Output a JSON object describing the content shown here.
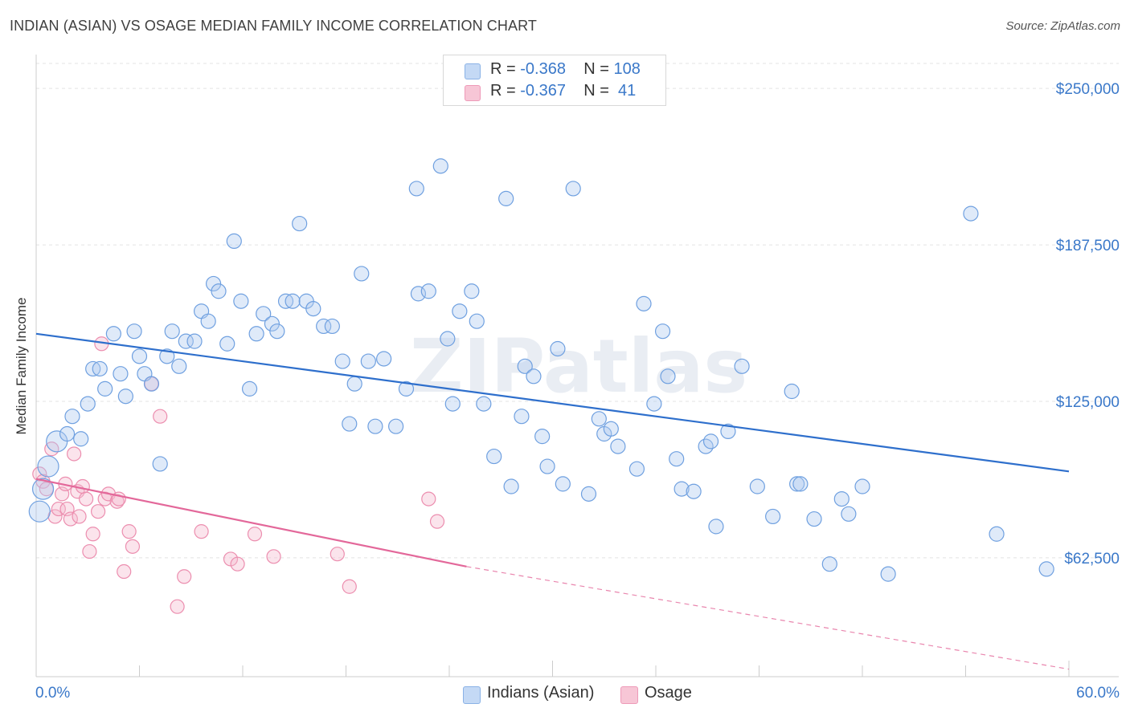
{
  "title": "INDIAN (ASIAN) VS OSAGE MEDIAN FAMILY INCOME CORRELATION CHART",
  "source": "Source: ZipAtlas.com",
  "watermark": "ZIPatlas",
  "legend": {
    "rows": [
      {
        "r_label": "R = ",
        "r_value": "-0.368",
        "n_label": "N = ",
        "n_value": "108"
      },
      {
        "r_label": "R = ",
        "r_value": "-0.367",
        "n_label": "N = ",
        "n_value": " 41"
      }
    ]
  },
  "chart_data": {
    "type": "scatter",
    "title": "INDIAN (ASIAN) VS OSAGE MEDIAN FAMILY INCOME CORRELATION CHART",
    "xlabel": "",
    "ylabel": "Median Family Income",
    "xlim": [
      0,
      60
    ],
    "ylim": [
      15000,
      260000
    ],
    "x_tick_labels": [
      "0.0%",
      "60.0%"
    ],
    "y_tick_values": [
      62500,
      125000,
      187500,
      250000
    ],
    "y_tick_labels": [
      "$62,500",
      "$125,000",
      "$187,500",
      "$250,000"
    ],
    "grid": true,
    "legend_position": "top-center",
    "colors": {
      "indians": "#6fa0e0",
      "osage": "#ee8fb0",
      "indians_line": "#2e6fcc",
      "osage_line": "#e3689a"
    },
    "series": [
      {
        "name": "Indians (Asian)",
        "r": -0.368,
        "n": 108,
        "trend": {
          "x0": 0,
          "y0": 152000,
          "x1": 60,
          "y1": 97000
        },
        "points": [
          [
            0.2,
            81000
          ],
          [
            0.4,
            90000
          ],
          [
            0.7,
            99000
          ],
          [
            1.2,
            109000
          ],
          [
            1.8,
            112000
          ],
          [
            2.1,
            119000
          ],
          [
            2.6,
            110000
          ],
          [
            3.0,
            124000
          ],
          [
            3.3,
            138000
          ],
          [
            3.7,
            138000
          ],
          [
            4.0,
            130000
          ],
          [
            4.5,
            152000
          ],
          [
            4.9,
            136000
          ],
          [
            5.2,
            127000
          ],
          [
            5.7,
            153000
          ],
          [
            6.0,
            143000
          ],
          [
            6.3,
            136000
          ],
          [
            6.7,
            132000
          ],
          [
            7.2,
            100000
          ],
          [
            7.6,
            143000
          ],
          [
            7.9,
            153000
          ],
          [
            8.3,
            139000
          ],
          [
            8.7,
            149000
          ],
          [
            9.2,
            149000
          ],
          [
            9.6,
            161000
          ],
          [
            10.0,
            157000
          ],
          [
            10.3,
            172000
          ],
          [
            10.6,
            169000
          ],
          [
            11.1,
            148000
          ],
          [
            11.5,
            189000
          ],
          [
            11.9,
            165000
          ],
          [
            12.4,
            130000
          ],
          [
            12.8,
            152000
          ],
          [
            13.2,
            160000
          ],
          [
            13.7,
            156000
          ],
          [
            14.0,
            153000
          ],
          [
            14.5,
            165000
          ],
          [
            14.9,
            165000
          ],
          [
            15.3,
            196000
          ],
          [
            15.7,
            165000
          ],
          [
            16.1,
            162000
          ],
          [
            16.7,
            155000
          ],
          [
            17.2,
            155000
          ],
          [
            17.8,
            141000
          ],
          [
            18.2,
            116000
          ],
          [
            18.5,
            132000
          ],
          [
            18.9,
            176000
          ],
          [
            19.3,
            141000
          ],
          [
            19.7,
            115000
          ],
          [
            20.2,
            142000
          ],
          [
            20.9,
            115000
          ],
          [
            21.5,
            130000
          ],
          [
            22.2,
            168000
          ],
          [
            22.1,
            210000
          ],
          [
            22.8,
            169000
          ],
          [
            23.5,
            219000
          ],
          [
            23.9,
            150000
          ],
          [
            24.2,
            124000
          ],
          [
            24.6,
            161000
          ],
          [
            25.3,
            169000
          ],
          [
            25.6,
            157000
          ],
          [
            26.0,
            124000
          ],
          [
            26.6,
            103000
          ],
          [
            27.3,
            206000
          ],
          [
            27.6,
            91000
          ],
          [
            28.2,
            119000
          ],
          [
            28.4,
            139000
          ],
          [
            28.9,
            135000
          ],
          [
            29.4,
            111000
          ],
          [
            29.7,
            99000
          ],
          [
            30.3,
            146000
          ],
          [
            30.6,
            92000
          ],
          [
            31.2,
            210000
          ],
          [
            32.1,
            88000
          ],
          [
            32.7,
            118000
          ],
          [
            33.0,
            112000
          ],
          [
            33.4,
            114000
          ],
          [
            33.8,
            107000
          ],
          [
            34.9,
            98000
          ],
          [
            35.3,
            164000
          ],
          [
            35.9,
            124000
          ],
          [
            36.4,
            153000
          ],
          [
            36.7,
            135000
          ],
          [
            37.2,
            102000
          ],
          [
            37.5,
            90000
          ],
          [
            38.2,
            89000
          ],
          [
            38.9,
            107000
          ],
          [
            39.2,
            109000
          ],
          [
            39.5,
            75000
          ],
          [
            40.2,
            113000
          ],
          [
            41.0,
            139000
          ],
          [
            41.9,
            91000
          ],
          [
            42.8,
            79000
          ],
          [
            43.9,
            129000
          ],
          [
            44.2,
            92000
          ],
          [
            44.4,
            92000
          ],
          [
            45.2,
            78000
          ],
          [
            46.1,
            60000
          ],
          [
            46.8,
            86000
          ],
          [
            47.2,
            80000
          ],
          [
            48.0,
            91000
          ],
          [
            49.5,
            56000
          ],
          [
            54.3,
            200000
          ],
          [
            55.8,
            72000
          ],
          [
            58.7,
            58000
          ]
        ]
      },
      {
        "name": "Osage",
        "r": -0.367,
        "n": 41,
        "trend": {
          "x0": 0,
          "y0": 94000,
          "x1": 25,
          "y1": 59000,
          "dash_x1": 60,
          "dash_y1": 18000
        },
        "points": [
          [
            0.2,
            96000
          ],
          [
            0.4,
            93000
          ],
          [
            0.6,
            90000
          ],
          [
            0.9,
            106000
          ],
          [
            1.1,
            79000
          ],
          [
            1.3,
            82000
          ],
          [
            1.5,
            88000
          ],
          [
            1.7,
            92000
          ],
          [
            1.8,
            82000
          ],
          [
            2.0,
            78000
          ],
          [
            2.2,
            104000
          ],
          [
            2.4,
            89000
          ],
          [
            2.5,
            79000
          ],
          [
            2.7,
            91000
          ],
          [
            2.9,
            86000
          ],
          [
            3.1,
            65000
          ],
          [
            3.3,
            72000
          ],
          [
            3.6,
            81000
          ],
          [
            3.8,
            148000
          ],
          [
            4.0,
            86000
          ],
          [
            4.2,
            88000
          ],
          [
            4.7,
            85000
          ],
          [
            4.8,
            86000
          ],
          [
            5.1,
            57000
          ],
          [
            5.4,
            73000
          ],
          [
            5.6,
            67000
          ],
          [
            6.7,
            132000
          ],
          [
            7.2,
            119000
          ],
          [
            8.2,
            43000
          ],
          [
            8.6,
            55000
          ],
          [
            9.6,
            73000
          ],
          [
            11.3,
            62000
          ],
          [
            11.7,
            60000
          ],
          [
            12.7,
            72000
          ],
          [
            13.8,
            63000
          ],
          [
            17.5,
            64000
          ],
          [
            18.2,
            51000
          ],
          [
            22.8,
            86000
          ],
          [
            23.3,
            77000
          ]
        ]
      }
    ]
  }
}
